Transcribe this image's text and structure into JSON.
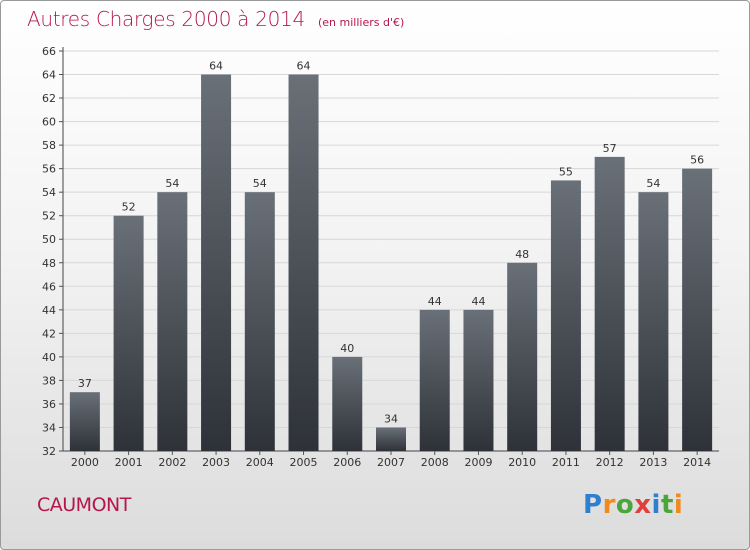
{
  "title": "Autres Charges 2000 à 2014",
  "subtitle": "(en milliers d'€)",
  "place": "CAUMONT",
  "logo": [
    "P",
    "r",
    "o",
    "x",
    "i",
    "t",
    "i"
  ],
  "colors": {
    "title": "#b5174b",
    "bar_top": "#6a7078",
    "bar_bottom": "#2e3238",
    "grid": "#d7d7d7"
  },
  "chart_data": {
    "type": "bar",
    "categories": [
      "2000",
      "2001",
      "2002",
      "2003",
      "2004",
      "2005",
      "2006",
      "2007",
      "2008",
      "2009",
      "2010",
      "2011",
      "2012",
      "2013",
      "2014"
    ],
    "values": [
      37,
      52,
      54,
      64,
      54,
      64,
      40,
      34,
      44,
      44,
      48,
      55,
      57,
      54,
      56
    ],
    "ylim": [
      32,
      66
    ],
    "ytick_step": 2,
    "grid": true,
    "xlabel": "",
    "ylabel": ""
  }
}
